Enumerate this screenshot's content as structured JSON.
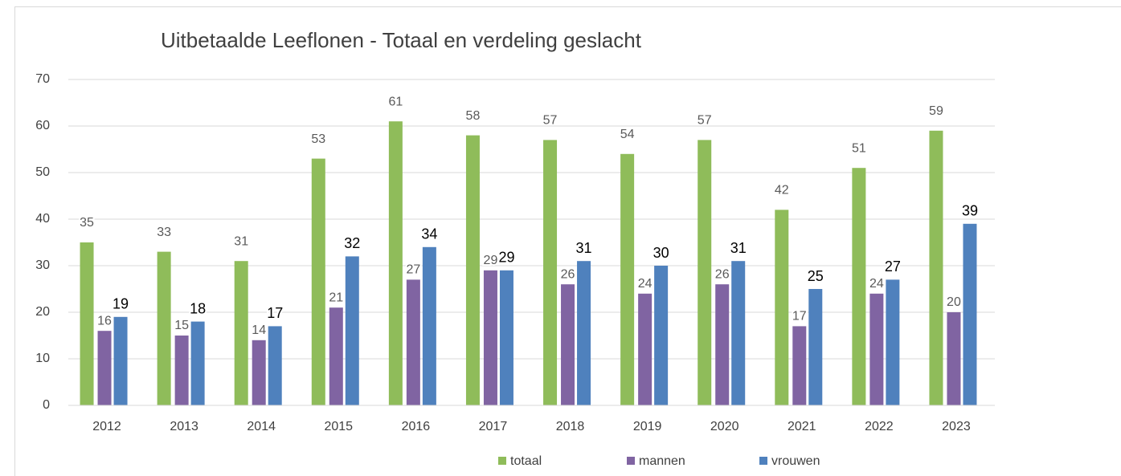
{
  "chart_data": {
    "type": "bar",
    "title": "Uitbetaalde Leeflonen - Totaal en verdeling geslacht",
    "categories": [
      "2012",
      "2013",
      "2014",
      "2015",
      "2016",
      "2017",
      "2018",
      "2019",
      "2020",
      "2021",
      "2022",
      "2023"
    ],
    "series": [
      {
        "name": "totaal",
        "color": "#8fbc5a",
        "values": [
          35,
          33,
          31,
          53,
          61,
          58,
          57,
          54,
          57,
          42,
          51,
          59
        ]
      },
      {
        "name": "mannen",
        "color": "#8064a2",
        "values": [
          16,
          15,
          14,
          21,
          27,
          29,
          26,
          24,
          26,
          17,
          24,
          20
        ]
      },
      {
        "name": "vrouwen",
        "color": "#4f81bd",
        "values": [
          19,
          18,
          17,
          32,
          34,
          29,
          31,
          30,
          31,
          25,
          27,
          39
        ]
      }
    ],
    "ylim": [
      0,
      70
    ],
    "yticks": [
      0,
      10,
      20,
      30,
      40,
      50,
      60,
      70
    ],
    "grid": true,
    "legend": "bottom"
  }
}
